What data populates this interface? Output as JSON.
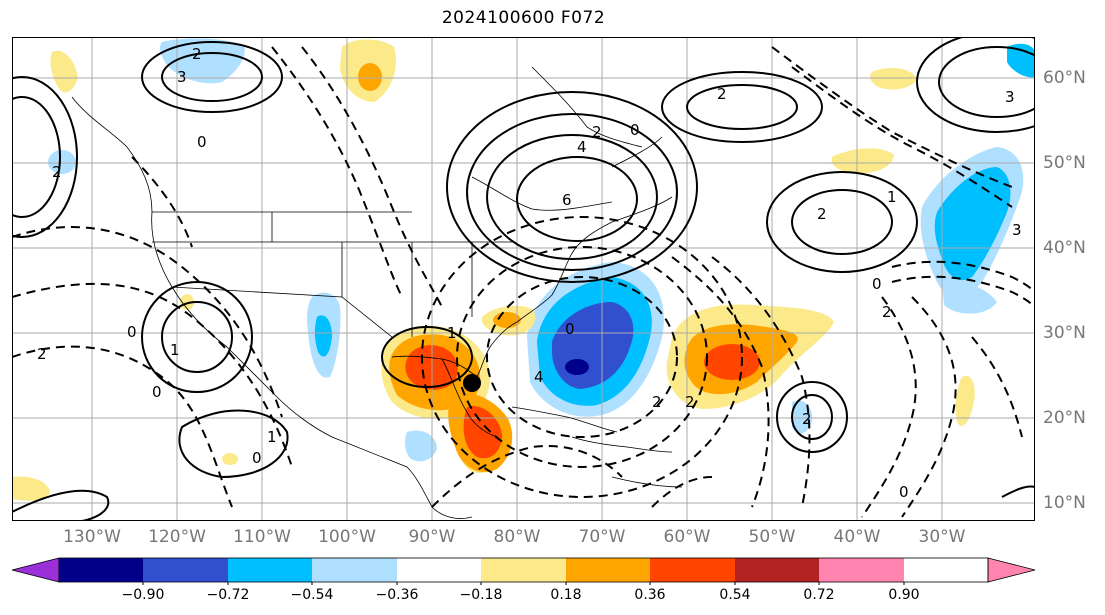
{
  "title": "2024100600 F072",
  "lon_labels": [
    "130°W",
    "120°W",
    "110°W",
    "100°W",
    "90°W",
    "80°W",
    "70°W",
    "60°W",
    "50°W",
    "40°W",
    "30°W"
  ],
  "lat_labels": [
    "60°N",
    "50°N",
    "40°N",
    "30°N",
    "20°N",
    "10°N"
  ],
  "colorbar": {
    "tick_labels": [
      "−0.90",
      "−0.72",
      "−0.54",
      "−0.36",
      "−0.18",
      "0.18",
      "0.36",
      "0.54",
      "0.72",
      "0.90"
    ],
    "colors": [
      "#9b30d9",
      "#00008b",
      "#3050d0",
      "#00bfff",
      "#b0e0ff",
      "#ffffff",
      "#fce98a",
      "#ffa500",
      "#ff4500",
      "#b22222",
      "#ff85b0"
    ]
  },
  "contour_labels": [
    "2",
    "3",
    "0",
    "2",
    "6",
    "2",
    "0",
    "4",
    "2",
    "3",
    "1",
    "2",
    "0",
    "2",
    "0",
    "1",
    "2",
    "0",
    "1",
    "0",
    "2",
    "2",
    "1",
    "0",
    "4",
    "2",
    "3",
    "0"
  ],
  "storm_marker": "black-dot"
}
